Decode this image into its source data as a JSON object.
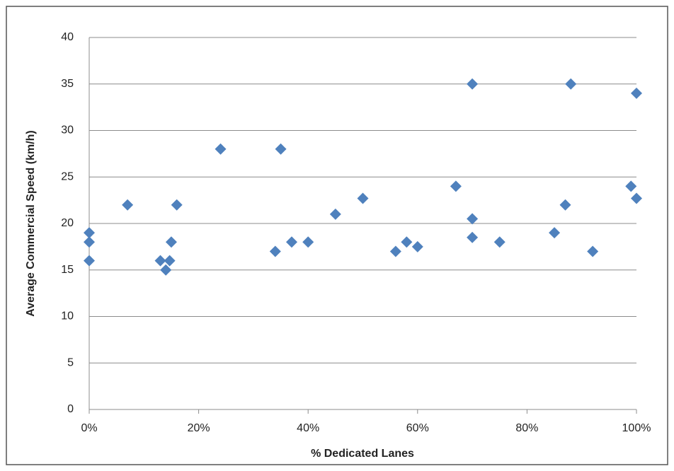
{
  "chart_data": {
    "type": "scatter",
    "x_label": "% Dedicated Lanes",
    "y_label": "Average Commercial Speed (km/h)",
    "color": "#4f81bd",
    "grid": true,
    "x": [
      0,
      0,
      0,
      7,
      13,
      14,
      14.7,
      15,
      16,
      24,
      34,
      35,
      37,
      40,
      45,
      50,
      56,
      58,
      60,
      67,
      70,
      70,
      70,
      75,
      85,
      87,
      88,
      92,
      99,
      100,
      100
    ],
    "values": [
      19,
      18,
      16,
      22,
      16,
      15,
      16,
      18,
      22,
      28,
      17,
      28,
      18,
      18,
      21,
      22.7,
      17,
      18,
      17.5,
      24,
      35,
      20.5,
      18.5,
      18,
      19,
      22,
      35,
      17,
      24,
      34,
      22.7
    ],
    "xlim": [
      0,
      100
    ],
    "xticks": [
      {
        "value": 0,
        "label": "0%"
      },
      {
        "value": 20,
        "label": "20%"
      },
      {
        "value": 40,
        "label": "40%"
      },
      {
        "value": 60,
        "label": "60%"
      },
      {
        "value": 80,
        "label": "80%"
      },
      {
        "value": 100,
        "label": "100%"
      }
    ],
    "ylim": [
      0,
      40
    ],
    "yticks": [
      0,
      5,
      10,
      15,
      20,
      25,
      30,
      35,
      40
    ]
  }
}
